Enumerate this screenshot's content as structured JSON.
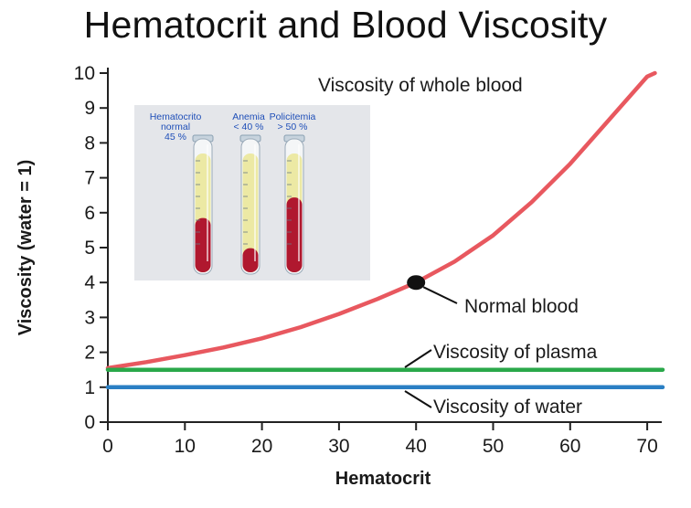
{
  "slide_title": "Hematocrit and Blood Viscosity",
  "colors": {
    "whole_blood": "#e8585f",
    "plasma": "#2aa84a",
    "water": "#2a7fc4",
    "axis": "#222222",
    "inset_bg": "#e4e6ea",
    "tube_label": "#1f4fb8",
    "blood": "#b0182f",
    "plasma_fill": "#ece9a4"
  },
  "chart_data": {
    "type": "line",
    "title": "",
    "xlabel": "Hematocrit",
    "ylabel": "Viscosity (water = 1)",
    "xlim": [
      0,
      72
    ],
    "ylim": [
      0,
      10
    ],
    "x_ticks": [
      0,
      10,
      20,
      30,
      40,
      50,
      60,
      70
    ],
    "y_ticks": [
      0,
      1,
      2,
      3,
      4,
      5,
      6,
      7,
      8,
      9,
      10
    ],
    "grid": false,
    "series": [
      {
        "name": "Viscosity of whole blood",
        "x": [
          0,
          5,
          10,
          15,
          20,
          25,
          30,
          35,
          40,
          45,
          50,
          55,
          60,
          65,
          70,
          71
        ],
        "y": [
          1.55,
          1.72,
          1.92,
          2.14,
          2.4,
          2.72,
          3.1,
          3.53,
          4.0,
          4.6,
          5.35,
          6.3,
          7.4,
          8.65,
          9.9,
          10.0
        ]
      },
      {
        "name": "Viscosity of plasma",
        "x": [
          0,
          72
        ],
        "y": [
          1.5,
          1.5
        ]
      },
      {
        "name": "Viscosity of water",
        "x": [
          0,
          72
        ],
        "y": [
          1.0,
          1.0
        ]
      }
    ],
    "annotations": [
      {
        "text": "Normal blood",
        "x": 40,
        "y": 4.0
      }
    ]
  },
  "inset": {
    "tubes": [
      {
        "label_lines": [
          "Hematocrito",
          "normal",
          "45 %"
        ],
        "blood_fraction": 0.45
      },
      {
        "label_lines": [
          "Anemia",
          "< 40 %"
        ],
        "blood_fraction": 0.2
      },
      {
        "label_lines": [
          "Policitemia",
          "> 50 %"
        ],
        "blood_fraction": 0.62
      }
    ]
  }
}
